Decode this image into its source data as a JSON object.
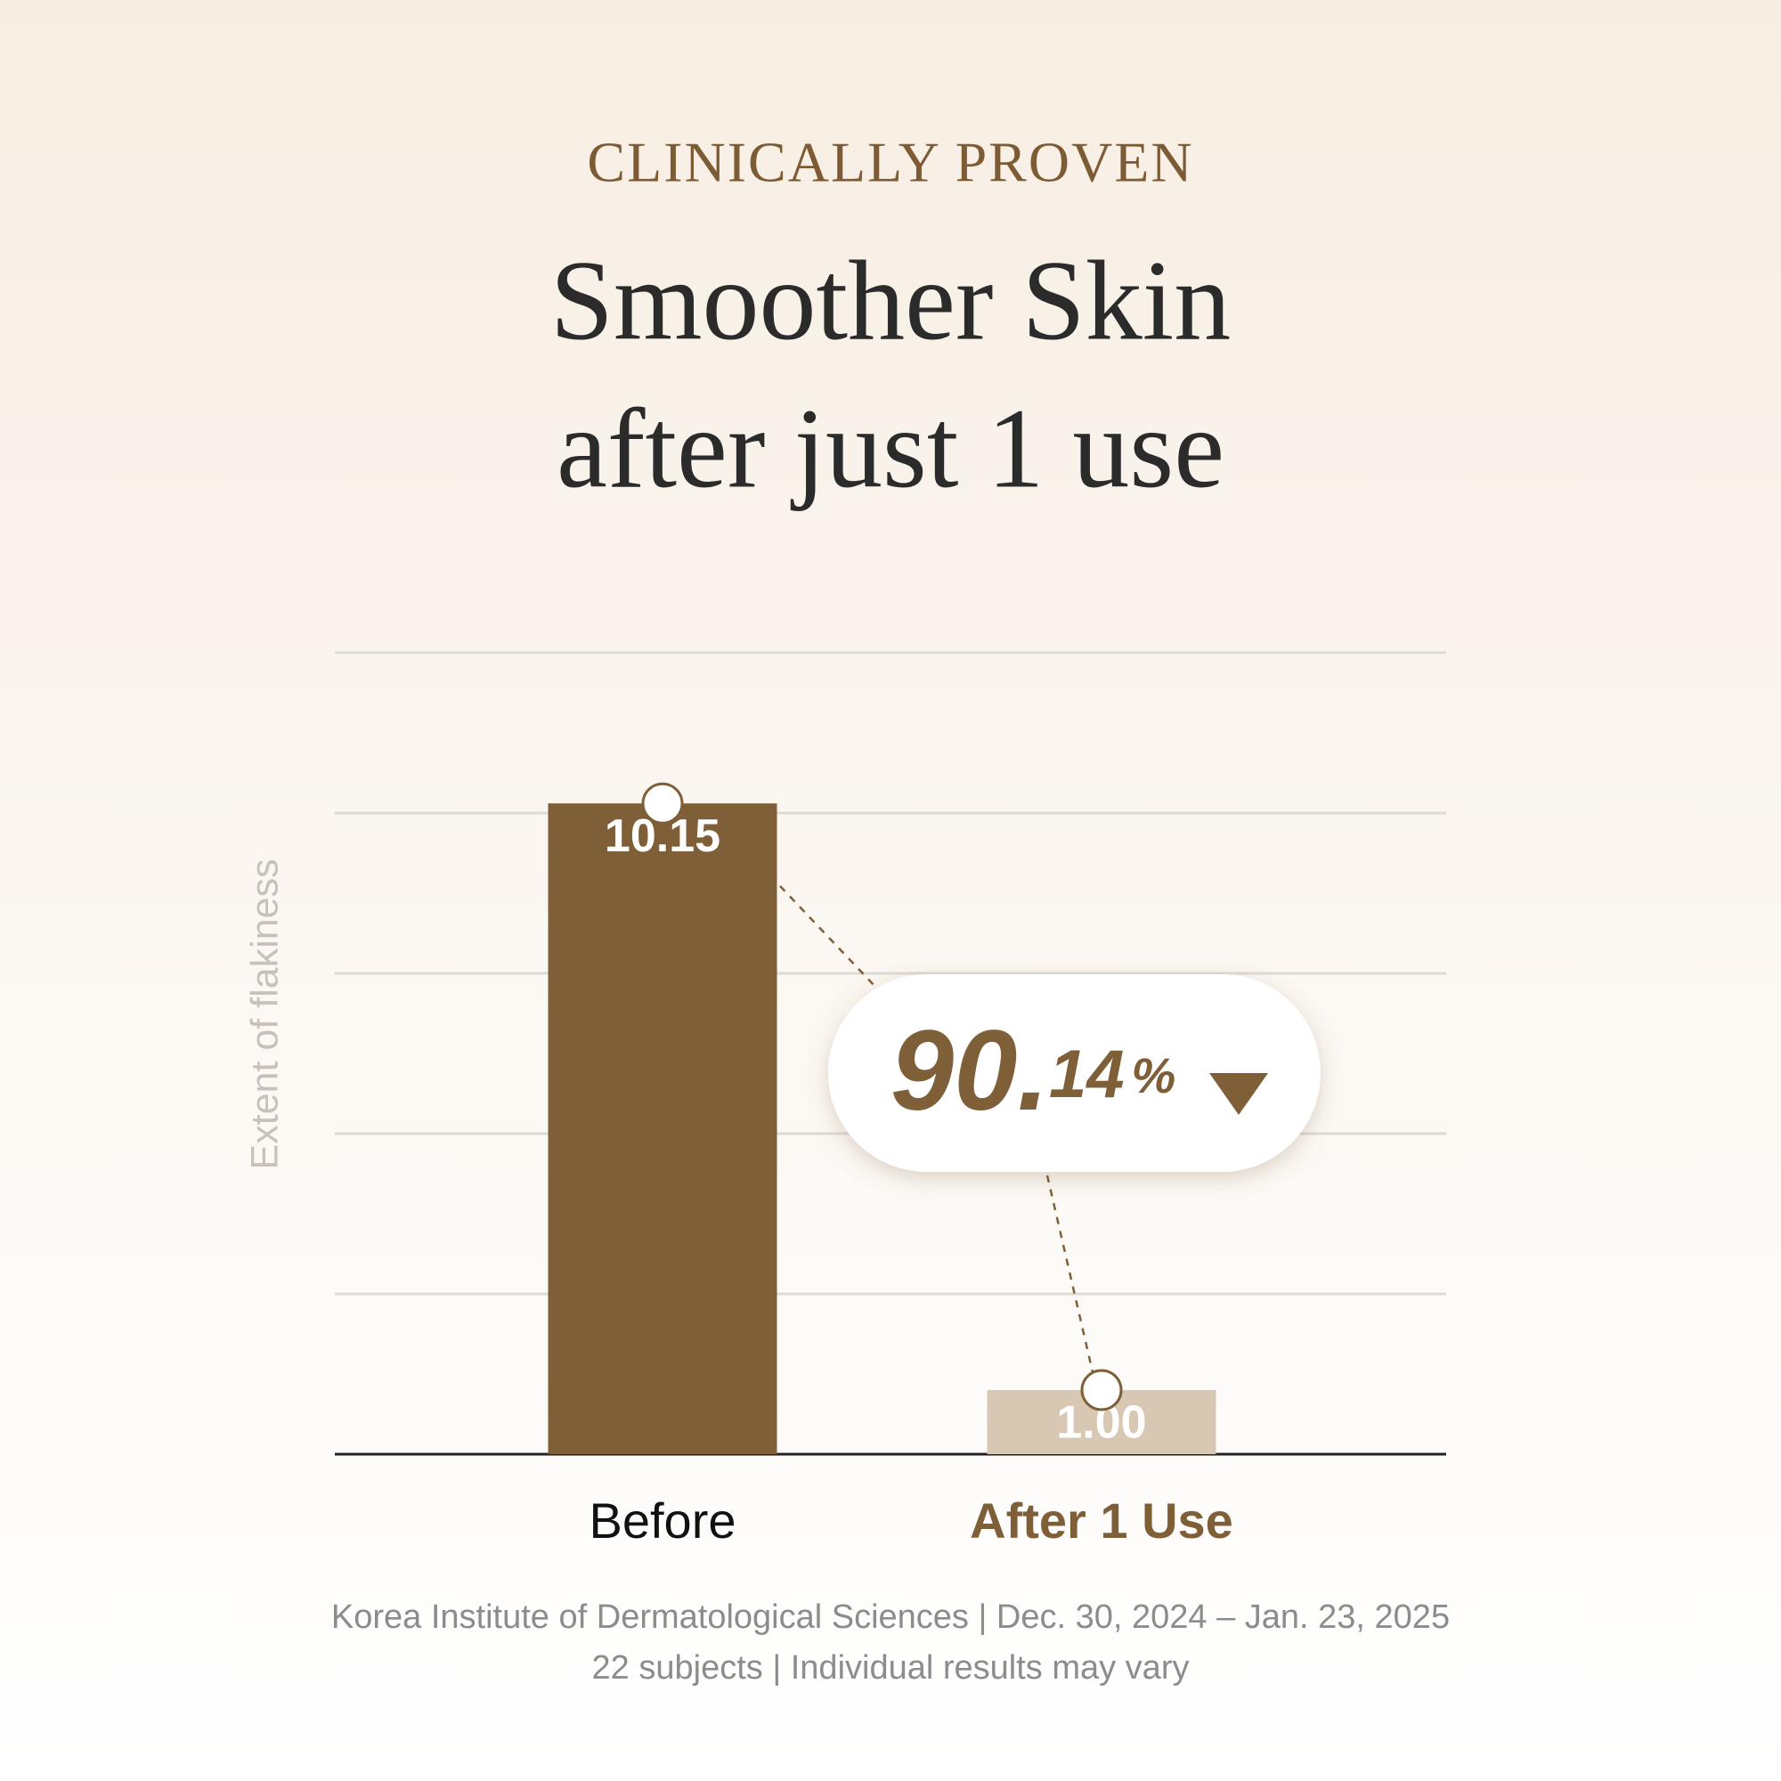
{
  "eyebrow": "CLINICALLY PROVEN",
  "headline": [
    "Smoother Skin",
    "after just 1 use"
  ],
  "chart_data": {
    "type": "bar",
    "y_label": "Extent of flakiness",
    "categories": [
      "Before",
      "After 1 Use"
    ],
    "values": [
      10.15,
      1.0
    ],
    "value_labels": [
      "10.15",
      "1.00"
    ],
    "colors": [
      "#7f5f37",
      "#d8c7b2"
    ],
    "ylim": [
      0,
      12.5
    ],
    "annotation": "90.14%"
  },
  "footnotes": [
    "Korea Institute of Dermatological Sciences | Dec. 30, 2024 – Jan. 23, 2025",
    "22 subjects | Individual results may vary"
  ]
}
